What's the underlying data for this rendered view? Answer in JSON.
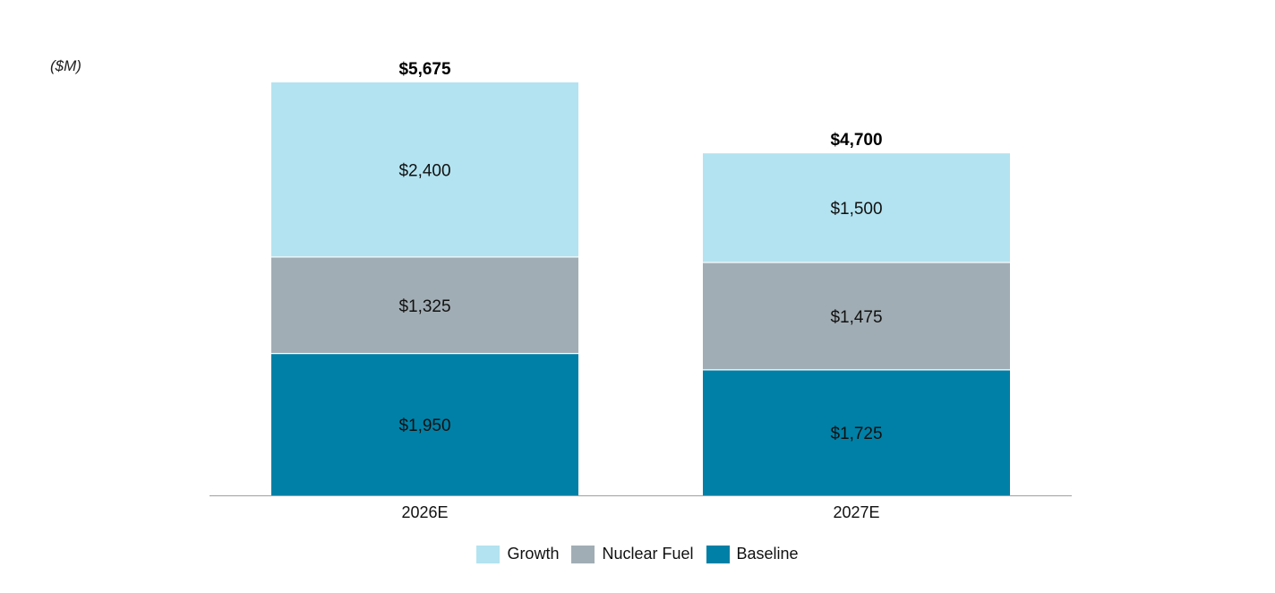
{
  "chart_data": {
    "type": "bar",
    "stacked": true,
    "unit_label": "($M)",
    "categories": [
      "2026E",
      "2027E"
    ],
    "series": [
      {
        "name": "Baseline",
        "values": [
          1950,
          1725
        ],
        "labels": [
          "$1,950",
          "$1,725"
        ],
        "color": "#0080a6"
      },
      {
        "name": "Nuclear Fuel",
        "values": [
          1325,
          1475
        ],
        "labels": [
          "$1,325",
          "$1,475"
        ],
        "color": "#a1adb4"
      },
      {
        "name": "Growth",
        "values": [
          2400,
          1500
        ],
        "labels": [
          "$2,400",
          "$1,500"
        ],
        "color": "#b3e3f0"
      }
    ],
    "totals": [
      5675,
      4700
    ],
    "total_labels": [
      "$5,675",
      "$4,700"
    ],
    "ylim": [
      0,
      5675
    ],
    "legend_order": [
      "Growth",
      "Nuclear Fuel",
      "Baseline"
    ],
    "legend_position": "bottom-center",
    "grid": false
  }
}
